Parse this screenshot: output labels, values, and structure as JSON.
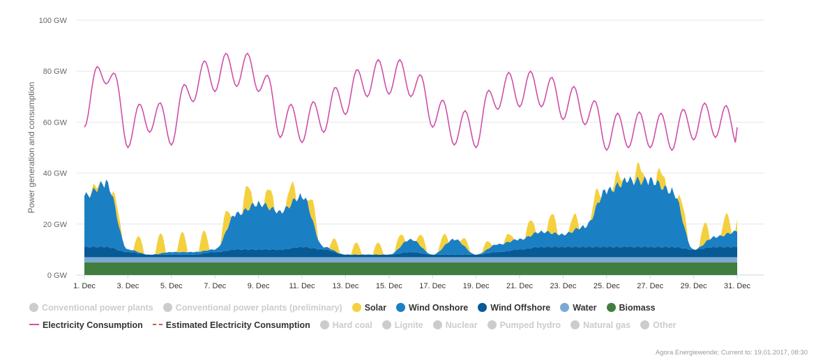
{
  "chart_data": {
    "type": "area",
    "ylabel": "Power generation and consumption",
    "ylim": [
      0,
      100
    ],
    "y_ticks": [
      "0 GW",
      "20 GW",
      "40 GW",
      "60 GW",
      "80 GW",
      "100 GW"
    ],
    "x_ticks": [
      "1. Dec",
      "3. Dec",
      "5. Dec",
      "7. Dec",
      "9. Dec",
      "11. Dec",
      "13. Dec",
      "15. Dec",
      "17. Dec",
      "19. Dec",
      "21. Dec",
      "23. Dec",
      "25. Dec",
      "27. Dec",
      "29. Dec",
      "31. Dec"
    ],
    "x": [
      "1. Dec",
      "2. Dec",
      "3. Dec",
      "4. Dec",
      "5. Dec",
      "6. Dec",
      "7. Dec",
      "8. Dec",
      "9. Dec",
      "10. Dec",
      "11. Dec",
      "12. Dec",
      "13. Dec",
      "14. Dec",
      "15. Dec",
      "16. Dec",
      "17. Dec",
      "18. Dec",
      "19. Dec",
      "20. Dec",
      "21. Dec",
      "22. Dec",
      "23. Dec",
      "24. Dec",
      "25. Dec",
      "26. Dec",
      "27. Dec",
      "28. Dec",
      "29. Dec",
      "30. Dec",
      "31. Dec"
    ],
    "series": [
      {
        "name": "Biomass",
        "color": "#417d3f",
        "values": [
          5,
          5,
          5,
          5,
          5,
          5,
          5,
          5,
          5,
          5,
          5,
          5,
          5,
          5,
          5,
          5,
          5,
          5,
          5,
          5,
          5,
          5,
          5,
          5,
          5,
          5,
          5,
          5,
          5,
          5,
          5
        ]
      },
      {
        "name": "Water",
        "color": "#7aaad4",
        "values": [
          2,
          2,
          2,
          2,
          2,
          2,
          2,
          2,
          2,
          2,
          2,
          2,
          2,
          2,
          2,
          2,
          2,
          2,
          2,
          2,
          2,
          2,
          2,
          2,
          2,
          2,
          2,
          2,
          2,
          2,
          2
        ]
      },
      {
        "name": "Wind Offshore",
        "color": "#075a94",
        "values": [
          4,
          4,
          2,
          1,
          1,
          1,
          2,
          3,
          3,
          3,
          4,
          3,
          1,
          1,
          1,
          2,
          1,
          1,
          1,
          2,
          3,
          4,
          4,
          4,
          4,
          4,
          4,
          4,
          3,
          4,
          4
        ]
      },
      {
        "name": "Wind Onshore",
        "color": "#1b7fc3",
        "values": [
          20,
          25,
          1,
          0,
          1,
          1,
          1,
          14,
          18,
          15,
          20,
          1,
          0,
          0,
          0,
          5,
          0,
          6,
          0,
          3,
          4,
          6,
          5,
          8,
          22,
          26,
          26,
          22,
          0,
          4,
          6
        ]
      },
      {
        "name": "Solar",
        "color": "#f4d03f",
        "values": [
          1,
          3,
          4,
          5,
          5,
          5,
          5,
          6,
          5,
          5,
          5,
          3,
          3,
          3,
          3,
          3,
          3,
          2,
          2,
          2,
          4,
          5,
          4,
          4,
          3,
          4,
          4,
          4,
          5,
          5,
          5
        ]
      },
      {
        "name": "Electricity Consumption",
        "color": "#cf4fa7",
        "values": [
          65,
          82,
          57,
          63,
          58,
          75,
          79,
          81,
          79,
          61,
          59,
          63,
          70,
          77,
          78,
          77,
          65,
          58,
          57,
          72,
          73,
          73,
          68,
          66,
          56,
          57,
          57,
          56,
          60,
          61,
          58
        ]
      }
    ]
  },
  "legend": {
    "items": [
      {
        "label": "Conventional power plants",
        "kind": "dot",
        "color": "#cccccc",
        "active": false
      },
      {
        "label": "Conventional power plants (preliminary)",
        "kind": "dot",
        "color": "#cccccc",
        "active": false
      },
      {
        "label": "Solar",
        "kind": "dot",
        "color": "#f4d03f",
        "active": true
      },
      {
        "label": "Wind Onshore",
        "kind": "dot",
        "color": "#1b7fc3",
        "active": true
      },
      {
        "label": "Wind Offshore",
        "kind": "dot",
        "color": "#075a94",
        "active": true
      },
      {
        "label": "Water",
        "kind": "dot",
        "color": "#7aaad4",
        "active": true
      },
      {
        "label": "Biomass",
        "kind": "dot",
        "color": "#417d3f",
        "active": true
      },
      {
        "label": "Electricity Consumption",
        "kind": "line",
        "color": "#cf4fa7",
        "active": true
      },
      {
        "label": "Estimated Electricity Consumption",
        "kind": "dashed",
        "color": "#d9534f",
        "active": true
      },
      {
        "label": "Hard coal",
        "kind": "dot",
        "color": "#cccccc",
        "active": false
      },
      {
        "label": "Lignite",
        "kind": "dot",
        "color": "#cccccc",
        "active": false
      },
      {
        "label": "Nuclear",
        "kind": "dot",
        "color": "#cccccc",
        "active": false
      },
      {
        "label": "Pumped hydro",
        "kind": "dot",
        "color": "#cccccc",
        "active": false
      },
      {
        "label": "Natural gas",
        "kind": "dot",
        "color": "#cccccc",
        "active": false
      },
      {
        "label": "Other",
        "kind": "dot",
        "color": "#cccccc",
        "active": false
      }
    ]
  },
  "credit": "Agora Energiewende; Current to: 19.01.2017, 08:30"
}
